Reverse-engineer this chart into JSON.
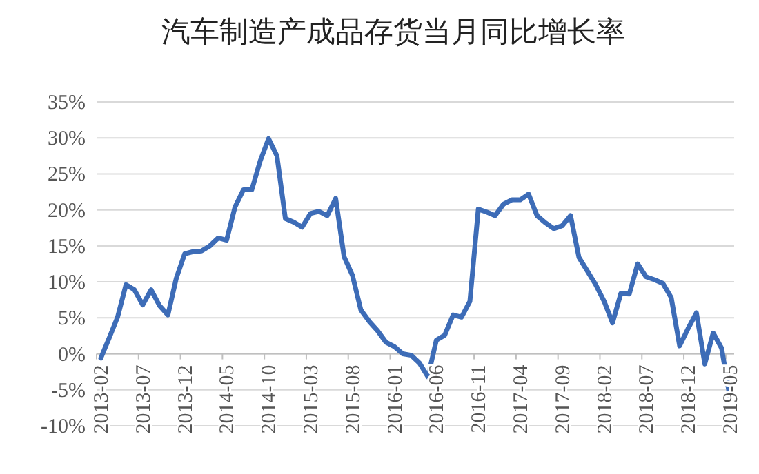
{
  "chart_data": {
    "type": "line",
    "title": "汽车制造产成品存货当月同比增长率",
    "categories": [
      "2013-02",
      null,
      null,
      null,
      null,
      "2013-07",
      null,
      null,
      null,
      null,
      "2013-12",
      null,
      null,
      null,
      null,
      "2014-05",
      null,
      null,
      null,
      null,
      "2014-10",
      null,
      null,
      null,
      null,
      "2015-03",
      null,
      null,
      null,
      null,
      "2015-08",
      null,
      null,
      null,
      null,
      "2016-01",
      null,
      null,
      null,
      null,
      "2016-06",
      null,
      null,
      null,
      null,
      "2016-11",
      null,
      null,
      null,
      null,
      "2017-04",
      null,
      null,
      null,
      null,
      "2017-09",
      null,
      null,
      null,
      null,
      "2018-02",
      null,
      null,
      null,
      null,
      "2018-07",
      null,
      null,
      null,
      null,
      "2018-12",
      null,
      null,
      null,
      null,
      "2019-05"
    ],
    "series": [
      {
        "color": "#3d6cb7",
        "values": [
          -0.6,
          2.2,
          5.1,
          9.6,
          8.9,
          6.8,
          8.9,
          6.7,
          5.4,
          10.5,
          13.9,
          14.2,
          14.3,
          15.0,
          16.1,
          15.8,
          20.4,
          22.8,
          22.8,
          26.8,
          29.9,
          27.5,
          18.8,
          18.3,
          17.6,
          19.5,
          19.8,
          19.2,
          21.6,
          13.5,
          10.9,
          6.1,
          4.5,
          3.2,
          1.6,
          1.0,
          0,
          -0.2,
          -1.3,
          -3.2,
          1.9,
          2.6,
          5.4,
          5.1,
          7.3,
          20.1,
          19.7,
          19.2,
          20.8,
          21.4,
          21.4,
          22.2,
          19.2,
          18.2,
          17.4,
          17.8,
          19.2,
          13.4,
          11.5,
          9.6,
          7.3,
          4.3,
          8.4,
          8.3,
          12.5,
          10.7,
          10.3,
          9.8,
          7.8,
          1.1,
          3.5,
          5.7,
          -1.4,
          2.9,
          0.8,
          -6.1
        ]
      }
    ],
    "ylim": [
      -10,
      35
    ],
    "yticks": [
      {
        "value": -10,
        "label": "-10%"
      },
      {
        "value": -5,
        "label": "-5%"
      },
      {
        "value": 0,
        "label": "0%"
      },
      {
        "value": 5,
        "label": "5%"
      },
      {
        "value": 10,
        "label": "10%"
      },
      {
        "value": 15,
        "label": "15%"
      },
      {
        "value": 20,
        "label": "20%"
      },
      {
        "value": 25,
        "label": "25%"
      },
      {
        "value": 30,
        "label": "30%"
      },
      {
        "value": 35,
        "label": "35%"
      }
    ],
    "grid": "y"
  }
}
